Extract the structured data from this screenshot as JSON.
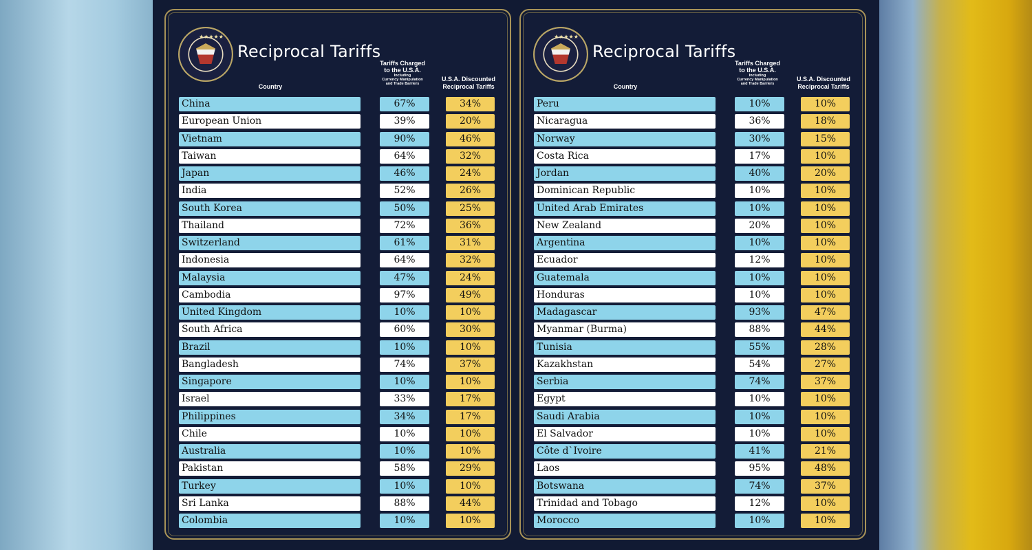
{
  "title": "Reciprocal Tariffs",
  "headers": {
    "country": "Country",
    "charged_line1": "Tariffs Charged",
    "charged_line2": "to the U.S.A.",
    "charged_sub1": "Including",
    "charged_sub2": "Currency Manipulation",
    "charged_sub3": "and Trade Barriers",
    "discount_line1": "U.S.A. Discounted",
    "discount_line2": "Reciprocal Tariffs"
  },
  "seal": {
    "star_glyphs": "★★★★★"
  },
  "colors": {
    "background": "#111a33",
    "row_blue": "#8ed4ea",
    "row_white": "#ffffff",
    "discount_gold": "#f3ce5d",
    "frame_gold": "#a89358"
  },
  "tables": [
    {
      "rows": [
        {
          "country": "China",
          "charged": "67%",
          "discounted": "34%"
        },
        {
          "country": "European Union",
          "charged": "39%",
          "discounted": "20%"
        },
        {
          "country": "Vietnam",
          "charged": "90%",
          "discounted": "46%"
        },
        {
          "country": "Taiwan",
          "charged": "64%",
          "discounted": "32%"
        },
        {
          "country": "Japan",
          "charged": "46%",
          "discounted": "24%"
        },
        {
          "country": "India",
          "charged": "52%",
          "discounted": "26%"
        },
        {
          "country": "South Korea",
          "charged": "50%",
          "discounted": "25%"
        },
        {
          "country": "Thailand",
          "charged": "72%",
          "discounted": "36%"
        },
        {
          "country": "Switzerland",
          "charged": "61%",
          "discounted": "31%"
        },
        {
          "country": "Indonesia",
          "charged": "64%",
          "discounted": "32%"
        },
        {
          "country": "Malaysia",
          "charged": "47%",
          "discounted": "24%"
        },
        {
          "country": "Cambodia",
          "charged": "97%",
          "discounted": "49%"
        },
        {
          "country": "United Kingdom",
          "charged": "10%",
          "discounted": "10%"
        },
        {
          "country": "South Africa",
          "charged": "60%",
          "discounted": "30%"
        },
        {
          "country": "Brazil",
          "charged": "10%",
          "discounted": "10%"
        },
        {
          "country": "Bangladesh",
          "charged": "74%",
          "discounted": "37%"
        },
        {
          "country": "Singapore",
          "charged": "10%",
          "discounted": "10%"
        },
        {
          "country": "Israel",
          "charged": "33%",
          "discounted": "17%"
        },
        {
          "country": "Philippines",
          "charged": "34%",
          "discounted": "17%"
        },
        {
          "country": "Chile",
          "charged": "10%",
          "discounted": "10%"
        },
        {
          "country": "Australia",
          "charged": "10%",
          "discounted": "10%"
        },
        {
          "country": "Pakistan",
          "charged": "58%",
          "discounted": "29%"
        },
        {
          "country": "Turkey",
          "charged": "10%",
          "discounted": "10%"
        },
        {
          "country": "Sri Lanka",
          "charged": "88%",
          "discounted": "44%"
        },
        {
          "country": "Colombia",
          "charged": "10%",
          "discounted": "10%"
        }
      ]
    },
    {
      "rows": [
        {
          "country": "Peru",
          "charged": "10%",
          "discounted": "10%"
        },
        {
          "country": "Nicaragua",
          "charged": "36%",
          "discounted": "18%"
        },
        {
          "country": "Norway",
          "charged": "30%",
          "discounted": "15%"
        },
        {
          "country": "Costa Rica",
          "charged": "17%",
          "discounted": "10%"
        },
        {
          "country": "Jordan",
          "charged": "40%",
          "discounted": "20%"
        },
        {
          "country": "Dominican Republic",
          "charged": "10%",
          "discounted": "10%"
        },
        {
          "country": "United Arab Emirates",
          "charged": "10%",
          "discounted": "10%"
        },
        {
          "country": "New Zealand",
          "charged": "20%",
          "discounted": "10%"
        },
        {
          "country": "Argentina",
          "charged": "10%",
          "discounted": "10%"
        },
        {
          "country": "Ecuador",
          "charged": "12%",
          "discounted": "10%"
        },
        {
          "country": "Guatemala",
          "charged": "10%",
          "discounted": "10%"
        },
        {
          "country": "Honduras",
          "charged": "10%",
          "discounted": "10%"
        },
        {
          "country": "Madagascar",
          "charged": "93%",
          "discounted": "47%"
        },
        {
          "country": "Myanmar (Burma)",
          "charged": "88%",
          "discounted": "44%"
        },
        {
          "country": "Tunisia",
          "charged": "55%",
          "discounted": "28%"
        },
        {
          "country": "Kazakhstan",
          "charged": "54%",
          "discounted": "27%"
        },
        {
          "country": "Serbia",
          "charged": "74%",
          "discounted": "37%"
        },
        {
          "country": "Egypt",
          "charged": "10%",
          "discounted": "10%"
        },
        {
          "country": "Saudi Arabia",
          "charged": "10%",
          "discounted": "10%"
        },
        {
          "country": "El Salvador",
          "charged": "10%",
          "discounted": "10%"
        },
        {
          "country": "Côte d`Ivoire",
          "charged": "41%",
          "discounted": "21%"
        },
        {
          "country": "Laos",
          "charged": "95%",
          "discounted": "48%"
        },
        {
          "country": "Botswana",
          "charged": "74%",
          "discounted": "37%"
        },
        {
          "country": "Trinidad and Tobago",
          "charged": "12%",
          "discounted": "10%"
        },
        {
          "country": "Morocco",
          "charged": "10%",
          "discounted": "10%"
        }
      ]
    }
  ]
}
